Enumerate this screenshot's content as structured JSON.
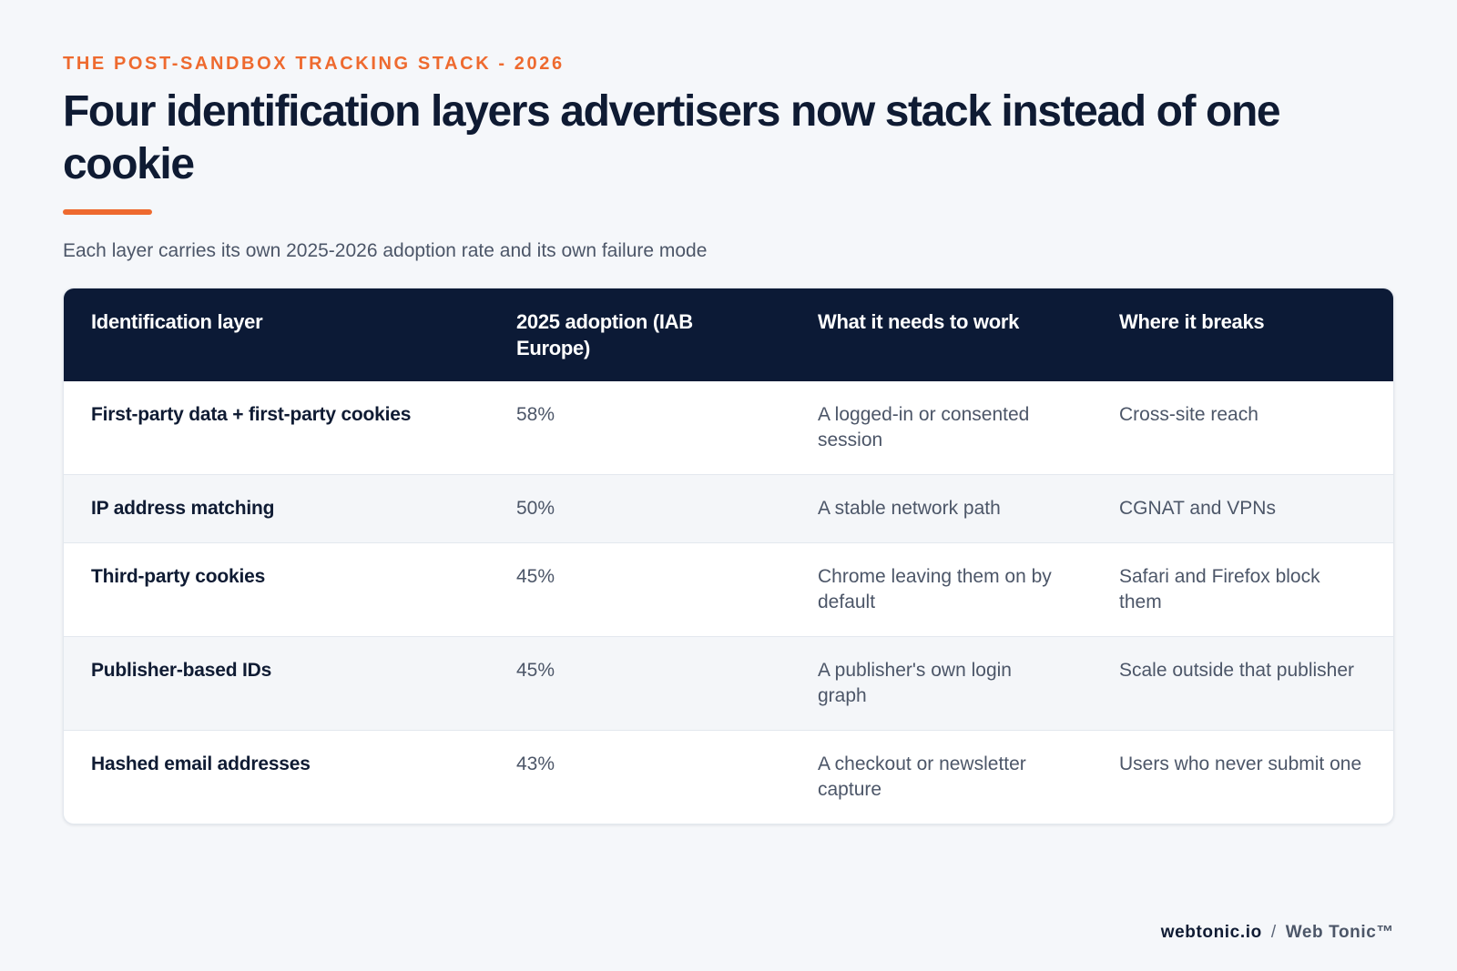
{
  "kicker": "THE POST-SANDBOX TRACKING STACK - 2026",
  "headline": "Four identification layers advertisers now stack instead of one cookie",
  "subtitle": "Each layer carries its own 2025-2026 adoption rate and its own failure mode",
  "colors": {
    "accent": "#ee6a2f",
    "header_bg": "#0c1a36",
    "page_bg": "#f5f7fa"
  },
  "table": {
    "headers": [
      "Identification layer",
      "2025 adoption (IAB Europe)",
      "What it needs to work",
      "Where it breaks"
    ],
    "rows": [
      {
        "layer": "First-party data + first-party cookies",
        "adoption": "58%",
        "needs": "A logged-in or consented session",
        "breaks": "Cross-site reach"
      },
      {
        "layer": "IP address matching",
        "adoption": "50%",
        "needs": "A stable network path",
        "breaks": "CGNAT and VPNs"
      },
      {
        "layer": "Third-party cookies",
        "adoption": "45%",
        "needs": "Chrome leaving them on by default",
        "breaks": "Safari and Firefox block them"
      },
      {
        "layer": "Publisher-based IDs",
        "adoption": "45%",
        "needs": "A publisher's own login graph",
        "breaks": "Scale outside that publisher"
      },
      {
        "layer": "Hashed email addresses",
        "adoption": "43%",
        "needs": "A checkout or newsletter capture",
        "breaks": "Users who never submit one"
      }
    ]
  },
  "footer": {
    "site": "webtonic.io",
    "separator": "/",
    "brand": "Web Tonic™"
  }
}
